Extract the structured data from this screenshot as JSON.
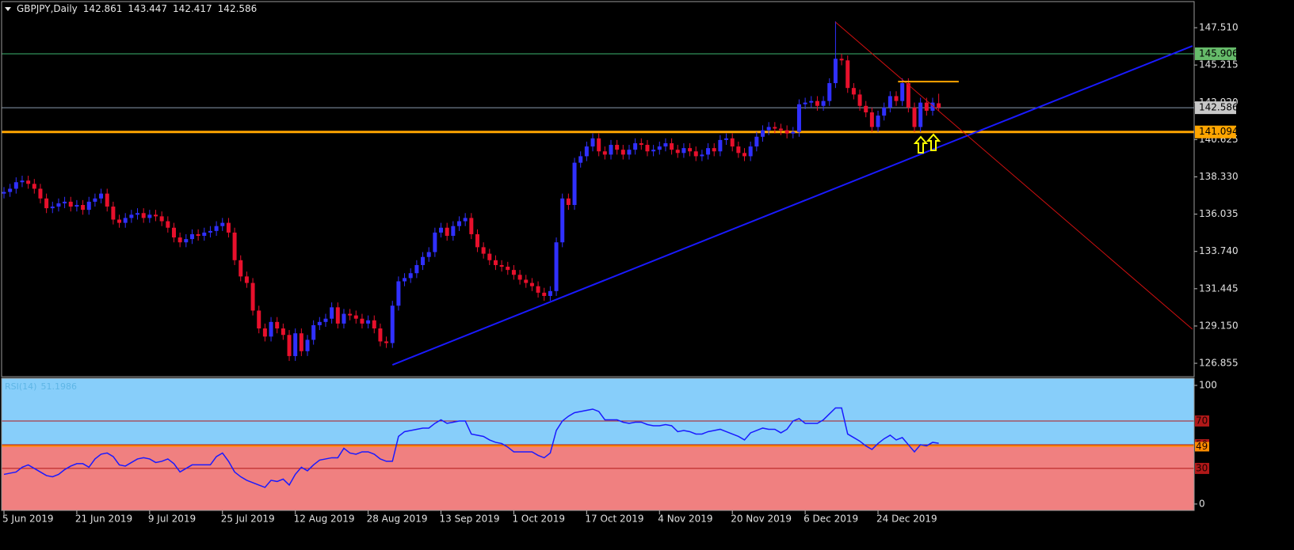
{
  "chart_data": [
    {
      "type": "candlestick",
      "title": "GBPJPY,Daily",
      "categories": [
        "5 Jun 2019",
        null,
        null,
        null,
        null,
        null,
        null,
        null,
        null,
        null,
        null,
        null,
        "21 Jun 2019",
        null,
        null,
        null,
        null,
        null,
        null,
        null,
        null,
        null,
        null,
        null,
        "9 Jul 2019",
        null,
        null,
        null,
        null,
        null,
        null,
        null,
        null,
        null,
        null,
        null,
        "25 Jul 2019",
        null,
        null,
        null,
        null,
        null,
        null,
        null,
        null,
        null,
        null,
        null,
        "12 Aug 2019",
        null,
        null,
        null,
        null,
        null,
        null,
        null,
        null,
        null,
        null,
        null,
        "28 Aug 2019",
        null,
        null,
        null,
        null,
        null,
        null,
        null,
        null,
        null,
        null,
        null,
        "13 Sep 2019",
        null,
        null,
        null,
        null,
        null,
        null,
        null,
        null,
        null,
        null,
        null,
        "1 Oct 2019",
        null,
        null,
        null,
        null,
        null,
        null,
        null,
        null,
        null,
        null,
        null,
        "17 Oct 2019",
        null,
        null,
        null,
        null,
        null,
        null,
        null,
        null,
        null,
        null,
        null,
        "4 Nov 2019",
        null,
        null,
        null,
        null,
        null,
        null,
        null,
        null,
        null,
        null,
        null,
        "20 Nov 2019",
        null,
        null,
        null,
        null,
        null,
        null,
        null,
        null,
        null,
        null,
        null,
        "6 Dec 2019",
        null,
        null,
        null,
        null,
        null,
        null,
        null,
        null,
        null,
        null,
        null,
        "24 Dec 2019",
        null,
        null,
        null,
        null,
        null,
        null,
        null,
        null,
        null,
        null
      ],
      "open": [
        137.3,
        137.4,
        137.6,
        138.0,
        138.1,
        137.9,
        137.6,
        137.0,
        136.4,
        136.5,
        136.7,
        136.8,
        136.5,
        136.6,
        136.3,
        136.8,
        137.0,
        137.3,
        136.5,
        135.7,
        135.5,
        135.8,
        136.0,
        136.1,
        135.8,
        136.0,
        135.9,
        135.6,
        135.2,
        134.6,
        134.3,
        134.5,
        134.8,
        134.7,
        134.9,
        135.0,
        135.3,
        135.5,
        134.9,
        133.2,
        132.2,
        131.8,
        130.1,
        129.0,
        128.5,
        129.4,
        129.0,
        128.6,
        127.3,
        128.7,
        127.6,
        128.3,
        129.2,
        129.4,
        129.6,
        130.3,
        129.3,
        129.9,
        129.8,
        129.6,
        129.3,
        129.5,
        129.0,
        128.2,
        128.1,
        130.4,
        131.9,
        132.1,
        132.4,
        132.9,
        133.4,
        133.7,
        134.9,
        135.2,
        134.7,
        135.3,
        135.6,
        135.8,
        134.8,
        134.0,
        133.6,
        133.2,
        132.9,
        132.8,
        132.6,
        132.3,
        132.0,
        131.8,
        131.6,
        131.2,
        131.0,
        131.3,
        134.3,
        137.0,
        136.6,
        139.2,
        139.6,
        140.2,
        140.7,
        139.9,
        139.7,
        140.3,
        140.0,
        139.7,
        140.0,
        140.4,
        140.3,
        139.9,
        140.0,
        140.2,
        140.4,
        140.0,
        139.8,
        140.1,
        139.9,
        139.6,
        139.7,
        140.1,
        139.9,
        140.6,
        140.7,
        140.2,
        139.8,
        139.6,
        140.2,
        140.8,
        141.2,
        141.4,
        141.3,
        141.2,
        141.0,
        141.1,
        142.8,
        142.9,
        143.0,
        142.7,
        143.0,
        144.1,
        145.6,
        145.5,
        143.8,
        143.4,
        142.7,
        142.3,
        141.4,
        142.1,
        142.6,
        143.3,
        143.0,
        144.1,
        142.6,
        141.4,
        142.9,
        142.4,
        142.861
      ],
      "high": [
        137.7,
        137.9,
        138.3,
        138.4,
        138.4,
        138.2,
        137.9,
        137.3,
        136.8,
        137.0,
        137.1,
        137.1,
        136.9,
        136.9,
        137.1,
        137.3,
        137.6,
        137.6,
        136.8,
        136.0,
        136.1,
        136.3,
        136.4,
        136.4,
        136.3,
        136.3,
        136.2,
        135.9,
        135.5,
        134.9,
        134.8,
        135.1,
        135.1,
        135.2,
        135.3,
        135.6,
        135.8,
        135.8,
        135.2,
        133.5,
        132.5,
        132.1,
        130.4,
        129.3,
        129.7,
        129.7,
        129.3,
        128.9,
        129.0,
        129.0,
        128.6,
        129.5,
        129.7,
        129.9,
        130.6,
        130.6,
        130.2,
        130.2,
        130.1,
        129.9,
        129.8,
        129.8,
        129.3,
        128.5,
        130.7,
        132.2,
        132.4,
        132.7,
        133.2,
        133.7,
        134.0,
        135.2,
        135.5,
        135.5,
        135.6,
        135.9,
        136.1,
        136.1,
        135.1,
        134.3,
        133.9,
        133.5,
        133.2,
        133.1,
        132.9,
        132.6,
        132.3,
        132.1,
        131.9,
        131.5,
        131.6,
        134.6,
        137.3,
        137.3,
        139.5,
        139.9,
        140.5,
        141.0,
        141.0,
        140.2,
        140.6,
        140.6,
        140.3,
        140.3,
        140.7,
        140.7,
        140.6,
        140.3,
        140.5,
        140.7,
        140.7,
        140.3,
        140.4,
        140.4,
        140.2,
        140.0,
        140.4,
        140.4,
        140.9,
        141.0,
        141.0,
        140.5,
        140.1,
        140.5,
        141.1,
        141.5,
        141.7,
        141.7,
        141.6,
        141.5,
        141.4,
        143.1,
        143.2,
        143.3,
        143.3,
        143.3,
        144.4,
        147.9,
        145.9,
        145.8,
        144.1,
        143.7,
        143.0,
        142.6,
        142.4,
        142.9,
        143.6,
        143.6,
        144.4,
        144.4,
        142.9,
        143.2,
        143.2,
        143.2,
        143.447
      ],
      "low": [
        137.0,
        137.1,
        137.3,
        137.7,
        137.6,
        137.3,
        136.7,
        136.1,
        136.1,
        136.2,
        136.4,
        136.2,
        136.2,
        136.0,
        136.0,
        136.5,
        136.7,
        136.2,
        135.4,
        135.2,
        135.2,
        135.5,
        135.7,
        135.5,
        135.5,
        135.6,
        135.3,
        134.9,
        134.3,
        134.0,
        134.0,
        134.2,
        134.4,
        134.4,
        134.6,
        134.7,
        135.0,
        134.6,
        132.9,
        131.9,
        131.5,
        129.8,
        128.7,
        128.2,
        128.2,
        128.7,
        128.3,
        127.0,
        127.0,
        127.3,
        127.3,
        128.0,
        128.9,
        129.1,
        129.3,
        129.0,
        129.0,
        129.5,
        129.3,
        129.0,
        129.0,
        128.7,
        127.9,
        127.8,
        127.8,
        130.1,
        131.6,
        131.8,
        132.1,
        132.6,
        133.1,
        133.4,
        134.6,
        134.4,
        134.4,
        135.0,
        135.3,
        134.5,
        133.7,
        133.3,
        132.9,
        132.6,
        132.5,
        132.3,
        132.0,
        131.7,
        131.5,
        131.3,
        130.9,
        130.7,
        130.7,
        131.0,
        134.0,
        136.3,
        136.3,
        138.9,
        139.3,
        139.9,
        139.6,
        139.4,
        139.4,
        139.7,
        139.4,
        139.4,
        139.7,
        140.0,
        139.6,
        139.6,
        139.7,
        139.9,
        139.7,
        139.5,
        139.5,
        139.6,
        139.3,
        139.3,
        139.4,
        139.6,
        139.6,
        140.3,
        139.9,
        139.5,
        139.3,
        139.3,
        139.9,
        140.5,
        140.9,
        141.0,
        140.9,
        140.7,
        140.7,
        140.8,
        142.5,
        142.6,
        142.4,
        142.4,
        142.7,
        143.8,
        145.2,
        143.5,
        143.1,
        142.4,
        142.0,
        141.1,
        141.1,
        141.8,
        142.3,
        142.7,
        142.7,
        142.3,
        141.1,
        141.1,
        142.1,
        142.1,
        142.417
      ],
      "close": [
        137.4,
        137.6,
        138.0,
        138.1,
        137.9,
        137.6,
        137.0,
        136.4,
        136.5,
        136.7,
        136.8,
        136.5,
        136.6,
        136.3,
        136.8,
        137.0,
        137.3,
        136.5,
        135.7,
        135.5,
        135.8,
        136.0,
        136.1,
        135.8,
        136.0,
        135.9,
        135.6,
        135.2,
        134.6,
        134.3,
        134.5,
        134.8,
        134.7,
        134.9,
        135.0,
        135.3,
        135.5,
        134.9,
        133.2,
        132.2,
        131.8,
        130.1,
        129.0,
        128.5,
        129.4,
        129.0,
        128.6,
        127.3,
        128.7,
        127.6,
        128.3,
        129.2,
        129.4,
        129.6,
        130.3,
        129.3,
        129.9,
        129.8,
        129.6,
        129.3,
        129.5,
        129.0,
        128.2,
        128.1,
        130.4,
        131.9,
        132.1,
        132.4,
        132.9,
        133.4,
        133.7,
        134.9,
        135.2,
        134.7,
        135.3,
        135.6,
        135.8,
        134.8,
        134.0,
        133.6,
        133.2,
        132.9,
        132.8,
        132.6,
        132.3,
        132.0,
        131.8,
        131.6,
        131.2,
        131.0,
        131.3,
        134.3,
        137.0,
        136.6,
        139.2,
        139.6,
        140.2,
        140.7,
        139.9,
        139.7,
        140.3,
        140.0,
        139.7,
        140.0,
        140.4,
        140.3,
        139.9,
        140.0,
        140.2,
        140.4,
        140.0,
        139.8,
        140.1,
        139.9,
        139.6,
        139.7,
        140.1,
        139.9,
        140.6,
        140.7,
        140.2,
        139.8,
        139.6,
        140.2,
        140.8,
        141.2,
        141.4,
        141.3,
        141.2,
        141.0,
        141.1,
        142.8,
        142.9,
        143.0,
        142.7,
        143.0,
        144.1,
        145.6,
        145.5,
        143.8,
        143.4,
        142.7,
        142.3,
        141.4,
        142.1,
        142.6,
        143.3,
        143.0,
        144.1,
        142.6,
        141.4,
        142.9,
        142.4,
        142.9,
        142.586
      ],
      "up_color": "#3030ff",
      "down_color": "#e8102c",
      "bid_line_color": "#8a9bb0",
      "bid_label_color": "#c8c8c8",
      "ylim": [
        126.03,
        149.07
      ],
      "yticks": [
        {
          "value": 147.51,
          "label": "147.510"
        },
        145.215,
        {
          "value": 142.92,
          "label": "142.920"
        },
        140.625,
        {
          "value": 138.33,
          "label": "138.330"
        },
        136.035,
        {
          "value": 133.74,
          "label": "133.740"
        },
        131.445,
        {
          "value": 129.15,
          "label": "129.150"
        },
        126.855
      ],
      "hlines": [
        {
          "value": 145.906,
          "color": "#3cb371",
          "width": 1
        },
        {
          "value": 141.094,
          "color": "#ffa500",
          "width": 3
        }
      ],
      "trendlines": [
        {
          "x": [
            64,
            195.8
          ],
          "y": [
            126.76,
            146.39
          ],
          "color": "#1a1aff",
          "width": 2
        },
        {
          "x": [
            137,
            195.8
          ],
          "y": [
            147.85,
            128.95
          ],
          "color": "#d01010",
          "width": 1
        },
        {
          "x": [
            147.3,
            157.3
          ],
          "y": [
            144.19,
            144.19
          ],
          "color": "#ffa500",
          "width": 2
        }
      ]
    },
    {
      "type": "line",
      "title": "RSI(14)",
      "color": "#1a1aff",
      "values": [
        25,
        26,
        27,
        31,
        33,
        30,
        27,
        24,
        23,
        25,
        29,
        32,
        34,
        34,
        31,
        38,
        42,
        43,
        40,
        33,
        32,
        35,
        38,
        39,
        38,
        35,
        36,
        38,
        34,
        27,
        30,
        33,
        33,
        33,
        33,
        40,
        43,
        36,
        27,
        23,
        20,
        18,
        16,
        14,
        20,
        19,
        21,
        16,
        25,
        31,
        28,
        33,
        37,
        38,
        39,
        39,
        47,
        43,
        42,
        44,
        44,
        42,
        38,
        36,
        36,
        57,
        61,
        62,
        63,
        64,
        64,
        68,
        71,
        68,
        69,
        70,
        70,
        59,
        58,
        57,
        54,
        52,
        51,
        48,
        44,
        44,
        44,
        44,
        41,
        39,
        43,
        62,
        70,
        74,
        77,
        78,
        79,
        80,
        78,
        71,
        71,
        71,
        69,
        68,
        69,
        69,
        67,
        66,
        66,
        67,
        66,
        61,
        62,
        61,
        59,
        59,
        61,
        62,
        63,
        61,
        59,
        57,
        54,
        60,
        62,
        64,
        63,
        63,
        60,
        63,
        70,
        72,
        68,
        68,
        68,
        71,
        76,
        81,
        81,
        59,
        56,
        53,
        49,
        46,
        51,
        55,
        58,
        54,
        56,
        50,
        44,
        50,
        49,
        52,
        51.1986
      ],
      "ylim": [
        -5.4,
        106
      ],
      "yticks": [
        0,
        100
      ],
      "levels": [
        70,
        50,
        30
      ],
      "level_color": "#b01818",
      "fill_above": "#87cefa",
      "fill_below": "#f08080",
      "hline": {
        "value": 49,
        "color": "#ff8c00"
      }
    }
  ]
}
